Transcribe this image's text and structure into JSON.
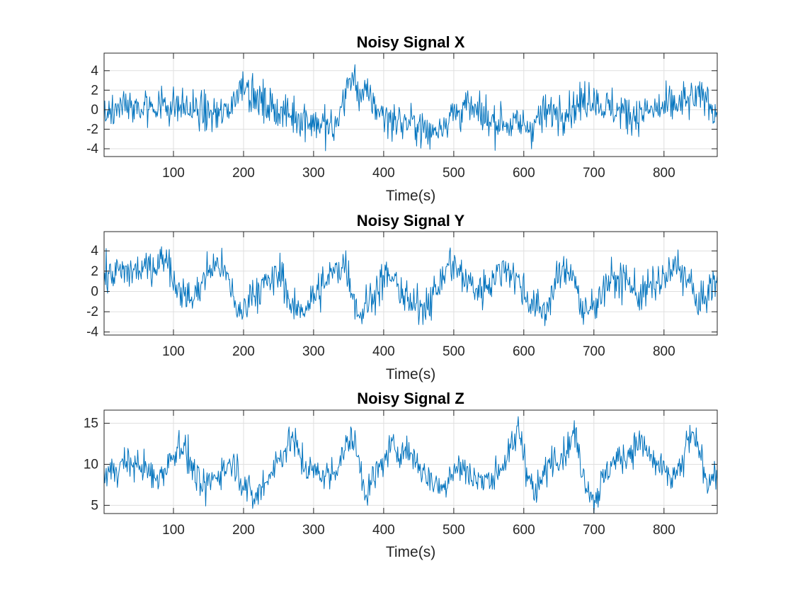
{
  "chart_data": [
    {
      "type": "line",
      "title": "Noisy Signal X",
      "xlabel": "Time(s)",
      "ylabel": "",
      "xlim": [
        1,
        876
      ],
      "ylim": [
        -4.8,
        5.8
      ],
      "xticks": [
        100,
        200,
        300,
        400,
        500,
        600,
        700,
        800
      ],
      "yticks": [
        -4,
        -2,
        0,
        2,
        4
      ],
      "grid": true,
      "series": [
        {
          "color": "#0072BD",
          "noise": 1.0,
          "x": [
            1,
            25,
            50,
            80,
            110,
            140,
            170,
            185,
            195,
            200,
            205,
            215,
            230,
            260,
            290,
            320,
            330,
            340,
            350,
            355,
            365,
            380,
            390,
            400,
            420,
            450,
            465,
            480,
            500,
            520,
            540,
            560,
            590,
            610,
            630,
            650,
            670,
            690,
            700,
            710,
            730,
            760,
            790,
            820,
            840,
            860,
            876
          ],
          "y": [
            -0.3,
            0.4,
            0.0,
            0.6,
            0.3,
            -0.3,
            -0.6,
            0.8,
            2.2,
            3.2,
            2.6,
            1.2,
            0.6,
            -0.4,
            -0.9,
            -1.8,
            -2.2,
            0.5,
            2.6,
            3.4,
            1.8,
            1.2,
            0.2,
            -0.6,
            -1.2,
            -1.5,
            -2.6,
            -1.6,
            -0.4,
            0.3,
            -0.8,
            -1.1,
            -1.6,
            -1.7,
            -0.4,
            -0.1,
            0.2,
            1.0,
            1.5,
            0.4,
            0.0,
            -0.5,
            0.0,
            0.5,
            1.0,
            1.4,
            -0.6
          ]
        }
      ]
    },
    {
      "type": "line",
      "title": "Noisy Signal Y",
      "xlabel": "Time(s)",
      "ylabel": "",
      "xlim": [
        1,
        876
      ],
      "ylim": [
        -4.3,
        5.9
      ],
      "xticks": [
        100,
        200,
        300,
        400,
        500,
        600,
        700,
        800
      ],
      "yticks": [
        -4,
        -2,
        0,
        2,
        4
      ],
      "grid": true,
      "series": [
        {
          "color": "#0072BD",
          "noise": 0.9,
          "x": [
            1,
            20,
            45,
            70,
            85,
            92,
            100,
            125,
            150,
            165,
            180,
            195,
            210,
            235,
            255,
            270,
            285,
            300,
            330,
            345,
            365,
            385,
            405,
            420,
            440,
            460,
            480,
            495,
            510,
            535,
            560,
            575,
            590,
            610,
            630,
            650,
            670,
            685,
            700,
            720,
            745,
            765,
            785,
            805,
            820,
            840,
            850,
            860,
            876
          ],
          "y": [
            1.5,
            1.8,
            2.0,
            2.4,
            3.2,
            3.6,
            1.0,
            -1.0,
            2.0,
            2.8,
            0.8,
            -2.6,
            -0.2,
            0.8,
            1.8,
            -2.0,
            -1.6,
            -0.6,
            2.0,
            2.8,
            -2.4,
            -0.2,
            1.6,
            0.6,
            -1.6,
            -1.2,
            0.6,
            3.0,
            1.6,
            0.0,
            1.5,
            2.6,
            1.2,
            -1.2,
            -2.0,
            1.6,
            2.2,
            -2.6,
            -1.2,
            1.0,
            1.2,
            -0.4,
            0.6,
            1.4,
            2.6,
            0.4,
            -1.8,
            -0.2,
            1.0
          ]
        }
      ]
    },
    {
      "type": "line",
      "title": "Noisy Signal Z",
      "xlabel": "Time(s)",
      "ylabel": "",
      "xlim": [
        1,
        876
      ],
      "ylim": [
        4,
        16.6
      ],
      "xticks": [
        100,
        200,
        300,
        400,
        500,
        600,
        700,
        800
      ],
      "yticks": [
        5,
        10,
        15
      ],
      "grid": true,
      "series": [
        {
          "color": "#0072BD",
          "noise": 1.0,
          "x": [
            1,
            30,
            55,
            75,
            95,
            110,
            125,
            140,
            160,
            185,
            205,
            215,
            240,
            260,
            270,
            285,
            300,
            325,
            350,
            355,
            375,
            395,
            410,
            440,
            460,
            485,
            495,
            510,
            540,
            560,
            585,
            592,
            605,
            615,
            640,
            660,
            672,
            685,
            700,
            725,
            745,
            765,
            790,
            810,
            825,
            835,
            850,
            862,
            876
          ],
          "y": [
            8.6,
            10.2,
            9.8,
            8.0,
            10.4,
            12.8,
            10.0,
            6.8,
            8.6,
            10.4,
            7.0,
            5.6,
            9.2,
            12.0,
            13.2,
            10.0,
            9.0,
            8.6,
            12.6,
            13.6,
            6.6,
            9.6,
            12.0,
            11.4,
            8.6,
            7.0,
            9.2,
            9.6,
            7.8,
            8.8,
            12.0,
            14.6,
            9.4,
            6.0,
            10.8,
            11.6,
            14.0,
            8.8,
            5.6,
            10.2,
            11.0,
            12.8,
            9.8,
            8.2,
            9.4,
            13.4,
            12.0,
            8.0,
            9.0
          ]
        }
      ]
    }
  ]
}
